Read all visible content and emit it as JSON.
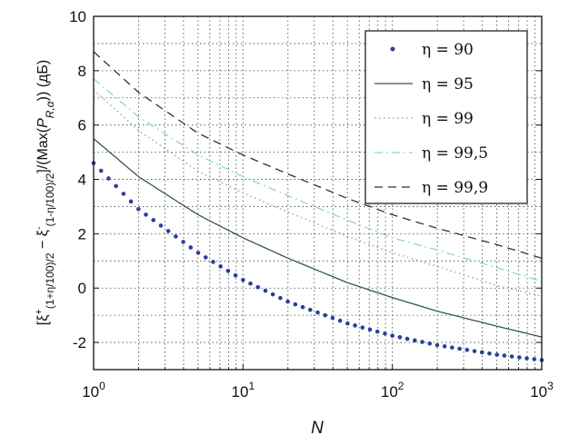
{
  "chart_data": {
    "type": "line",
    "xscale": "log",
    "xlim": [
      1,
      1000
    ],
    "ylim": [
      -3,
      10
    ],
    "grid": true,
    "legend_position": "top-right",
    "xlabel": "N",
    "ylabel_latex": "[ξ⁺(1+η/100)/2 − ξ⁻(1−η/100)/2]/(Max(P_R,α)) (дБ)",
    "x_ticks": [
      {
        "base": "10",
        "exp": "0",
        "value": 1
      },
      {
        "base": "10",
        "exp": "1",
        "value": 10
      },
      {
        "base": "10",
        "exp": "2",
        "value": 100
      },
      {
        "base": "10",
        "exp": "3",
        "value": 1000
      }
    ],
    "y_ticks": [
      "-2",
      "0",
      "2",
      "4",
      "6",
      "8",
      "10"
    ],
    "series": [
      {
        "name": "η = 90",
        "style": "dots",
        "color": "#2b3f9e",
        "x": [
          1,
          2,
          5,
          10,
          20,
          50,
          100,
          200,
          500,
          1000
        ],
        "y": [
          4.6,
          2.9,
          1.3,
          0.3,
          -0.5,
          -1.3,
          -1.75,
          -2.1,
          -2.45,
          -2.65
        ]
      },
      {
        "name": "η = 95",
        "style": "solid",
        "color": "#2e5e3a",
        "x": [
          1,
          2,
          5,
          10,
          20,
          50,
          100,
          200,
          500,
          1000
        ],
        "y": [
          5.5,
          4.1,
          2.7,
          1.85,
          1.1,
          0.2,
          -0.35,
          -0.85,
          -1.4,
          -1.8
        ]
      },
      {
        "name": "η = 99",
        "style": "dotted",
        "color": "#aaaaaa",
        "x": [
          1,
          2,
          5,
          10,
          20,
          50,
          100,
          200,
          500,
          1000
        ],
        "y": [
          7.3,
          5.8,
          4.3,
          3.5,
          2.8,
          1.9,
          1.3,
          0.8,
          0.1,
          -0.3
        ]
      },
      {
        "name": "η = 99,5",
        "style": "dashdot",
        "color": "#8fd3e0",
        "x": [
          1,
          2,
          5,
          10,
          20,
          50,
          100,
          200,
          500,
          1000
        ],
        "y": [
          7.7,
          6.3,
          4.9,
          4.1,
          3.4,
          2.5,
          1.85,
          1.4,
          0.75,
          0.25
        ]
      },
      {
        "name": "η = 99,9",
        "style": "dashed",
        "color": "#333333",
        "x": [
          1,
          2,
          5,
          10,
          20,
          50,
          100,
          200,
          500,
          1000
        ],
        "y": [
          8.7,
          7.2,
          5.7,
          4.9,
          4.2,
          3.3,
          2.7,
          2.2,
          1.6,
          1.1
        ]
      }
    ]
  }
}
